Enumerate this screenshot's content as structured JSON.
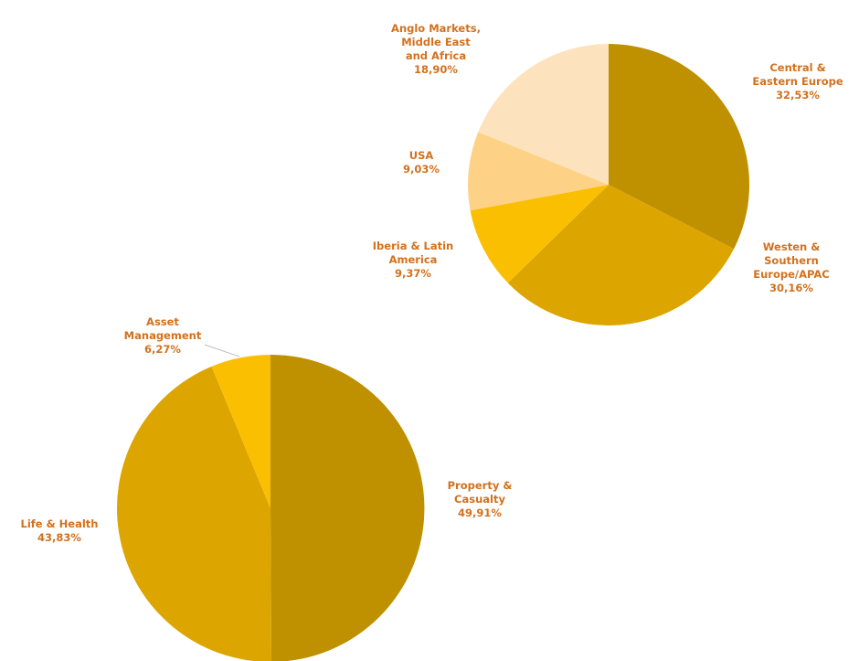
{
  "chart_data": [
    {
      "type": "pie",
      "title": "",
      "start_angle_deg": 0,
      "slices": [
        {
          "label": [
            "Central &",
            "Eastern Europe"
          ],
          "value_text": "32,53%",
          "value": 32.53,
          "color": "#bf9000"
        },
        {
          "label": [
            "Westen &",
            "Southern",
            "Europe/APAC"
          ],
          "value_text": "30,16%",
          "value": 30.16,
          "color": "#dca500"
        },
        {
          "label": [
            "Iberia & Latin",
            "America"
          ],
          "value_text": "9,37%",
          "value": 9.37,
          "color": "#fbbf02"
        },
        {
          "label": [
            "USA"
          ],
          "value_text": "9,03%",
          "value": 9.03,
          "color": "#fdd286"
        },
        {
          "label": [
            "Anglo Markets,",
            "Middle East",
            "and Africa"
          ],
          "value_text": "18,90%",
          "value": 18.9,
          "color": "#fde3bd"
        }
      ]
    },
    {
      "type": "pie",
      "title": "",
      "start_angle_deg": 0,
      "slices": [
        {
          "label": [
            "Property &",
            "Casualty"
          ],
          "value_text": "49,91%",
          "value": 49.91,
          "color": "#bf9000"
        },
        {
          "label": [
            "Life & Health"
          ],
          "value_text": "43,83%",
          "value": 43.83,
          "color": "#dca500"
        },
        {
          "label": [
            "Asset",
            "Management"
          ],
          "value_text": "6,27%",
          "value": 6.27,
          "color": "#fbbf02"
        }
      ]
    }
  ],
  "style": {
    "label_color": "#d2711e",
    "leader_color": "#bdbdbd"
  }
}
